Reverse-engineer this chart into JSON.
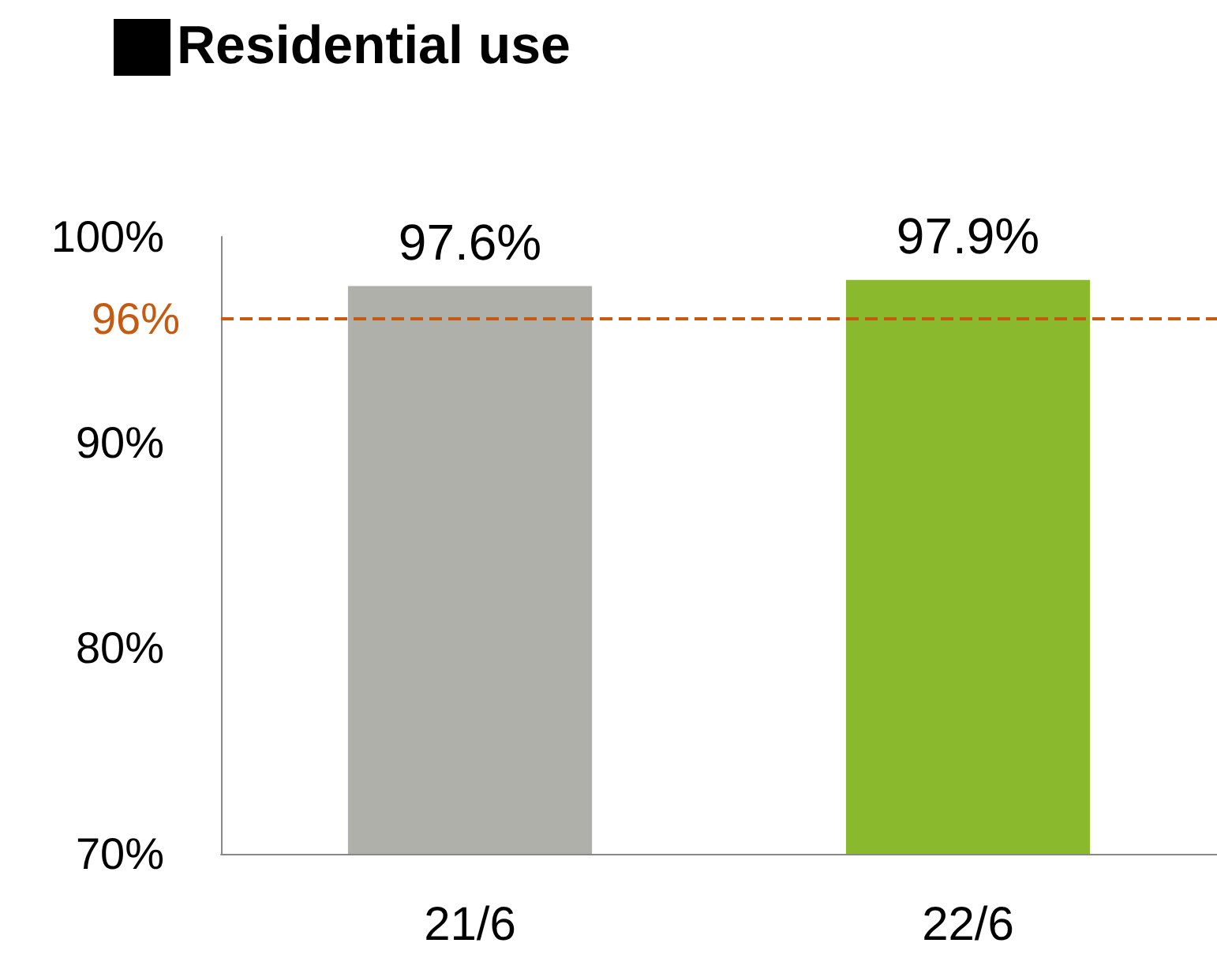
{
  "chart_data": {
    "type": "bar",
    "title": "Residential use",
    "categories": [
      "21/6",
      "22/6"
    ],
    "values": [
      97.6,
      97.9
    ],
    "colors": [
      "#b0b0aa",
      "#8ab92d"
    ],
    "value_labels": [
      "97.6%",
      "97.9%"
    ],
    "ylim": [
      70,
      100
    ],
    "yticks": [
      {
        "value": 70,
        "label": "70%"
      },
      {
        "value": 80,
        "label": "80%"
      },
      {
        "value": 90,
        "label": "90%"
      },
      {
        "value": 100,
        "label": "100%"
      }
    ],
    "ref_lines": [
      {
        "axis": "y",
        "value": 96,
        "label": "96%",
        "color": "#c55a11",
        "line_style": "dashed"
      }
    ],
    "grid": false
  }
}
